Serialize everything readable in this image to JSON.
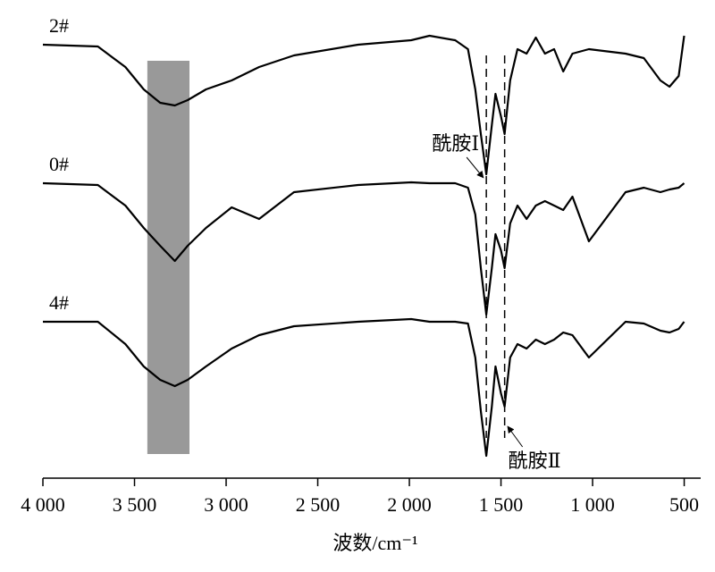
{
  "chart_data": {
    "type": "line",
    "x_label": "波数/cm⁻¹",
    "xlim": [
      4000,
      410
    ],
    "ylim": [
      0,
      101
    ],
    "xticks": [
      {
        "value": 4000,
        "label": "4 000"
      },
      {
        "value": 3500,
        "label": "3 500"
      },
      {
        "value": 3000,
        "label": "3 000"
      },
      {
        "value": 2500,
        "label": "2 500"
      },
      {
        "value": 2000,
        "label": "2 000"
      },
      {
        "value": 1500,
        "label": "1 500"
      },
      {
        "value": 1000,
        "label": "1 000"
      },
      500
    ],
    "x": [
      4000,
      3700,
      3550,
      3450,
      3360,
      3280,
      3210,
      3110,
      2970,
      2820,
      2630,
      2280,
      1990,
      1890,
      1750,
      1680,
      1640,
      1610,
      1580,
      1550,
      1530,
      1500,
      1480,
      1450,
      1410,
      1360,
      1310,
      1260,
      1210,
      1160,
      1110,
      1020,
      820,
      720,
      630,
      580,
      530,
      500
    ],
    "series": [
      {
        "name": "2#",
        "color": "#000000",
        "values": [
          97,
          96.6,
          92,
          87,
          84,
          83.4,
          84.6,
          87,
          89,
          92,
          94.6,
          97,
          98,
          99,
          98,
          96,
          87,
          77,
          68,
          79,
          86,
          81,
          77,
          89,
          96,
          95,
          98.6,
          95,
          96,
          91,
          95,
          96,
          95,
          94,
          89,
          87.6,
          90,
          99
        ]
      },
      {
        "name": "0#",
        "color": "#000000",
        "values": [
          66,
          65.6,
          61,
          56,
          52,
          48.6,
          52,
          56,
          60.6,
          58,
          64,
          65.6,
          66.2,
          66,
          66,
          65,
          59,
          47,
          36.6,
          47,
          54.6,
          51,
          47,
          57,
          61,
          58,
          61,
          62,
          61,
          60,
          63,
          53,
          64,
          65,
          64,
          64.6,
          65,
          66
        ]
      },
      {
        "name": "4#",
        "color": "#000000",
        "values": [
          35,
          35,
          30,
          25,
          22,
          20.6,
          22,
          25,
          29,
          32,
          34,
          35,
          35.6,
          35,
          35,
          34.6,
          27,
          15,
          5,
          16,
          25,
          19,
          16,
          27,
          30,
          29,
          31,
          30,
          31,
          32.6,
          32,
          27,
          35,
          34.6,
          33,
          32.6,
          33.4,
          35
        ]
      }
    ],
    "highlight_band": {
      "x": [
        3430,
        3200
      ],
      "color": "#999999"
    },
    "annotations": [
      {
        "text": "酰胺Ⅰ",
        "x": 1580
      },
      {
        "text": "酰胺Ⅱ",
        "x": 1480
      }
    ]
  }
}
